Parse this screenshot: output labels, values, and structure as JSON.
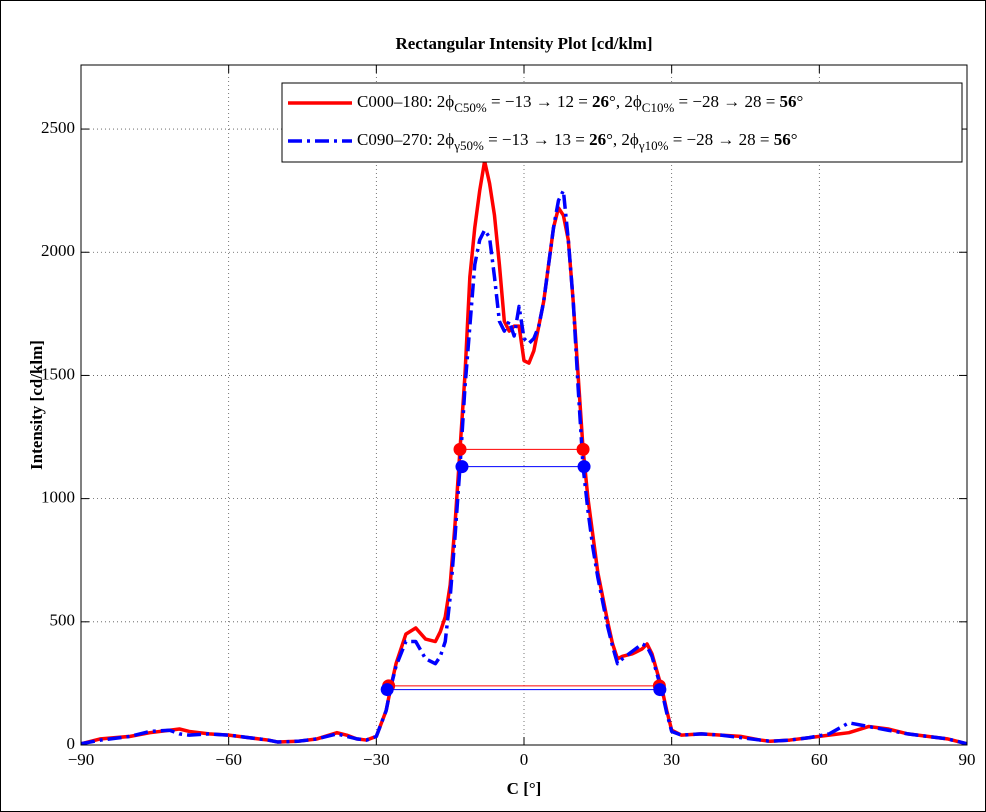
{
  "chart_data": {
    "type": "line",
    "title": "Rectangular Intensity Plot [cd/klm]",
    "xlabel": "C [°]",
    "ylabel": "Intensity [cd/klm]",
    "xlim": [
      -90,
      90
    ],
    "ylim": [
      0,
      2760
    ],
    "xticks": [
      {
        "value": -90,
        "label": "−90"
      },
      {
        "value": -60,
        "label": "−60"
      },
      {
        "value": -30,
        "label": "−30"
      },
      0,
      30,
      60,
      90
    ],
    "yticks": [
      0,
      500,
      1000,
      1500,
      2000,
      2500
    ],
    "grid": true,
    "legend": "upper-right",
    "x": [
      -90,
      -86,
      -80,
      -76,
      -72,
      -70,
      -68,
      -64,
      -60,
      -56,
      -52,
      -50,
      -46,
      -42,
      -38,
      -36,
      -34,
      -32,
      -30,
      -28,
      -27,
      -26,
      -24,
      -22,
      -20,
      -18,
      -17,
      -16,
      -15,
      -14,
      -13,
      -12,
      -11,
      -10,
      -9,
      -8,
      -7,
      -6,
      -5,
      -4,
      -3,
      -2,
      -1,
      0,
      1,
      2,
      3,
      4,
      5,
      6,
      7,
      8,
      9,
      10,
      11,
      12,
      13,
      14,
      15,
      16,
      17,
      18,
      19,
      20,
      22,
      24,
      25,
      26,
      27,
      28,
      29,
      30,
      32,
      36,
      40,
      44,
      48,
      50,
      54,
      58,
      62,
      66,
      70,
      74,
      78,
      82,
      86,
      90
    ],
    "series": [
      {
        "name": [
          {
            "text": "C000–180: 2ϕ",
            "style": "normal"
          },
          {
            "text": "C50%",
            "style": "sub"
          },
          {
            "text": " = −13 → 12 = ",
            "style": "normal"
          },
          {
            "text": "26",
            "style": "bold"
          },
          {
            "text": "°, 2ϕ",
            "style": "normal"
          },
          {
            "text": "C10%",
            "style": "sub"
          },
          {
            "text": " = −28 → 28 = ",
            "style": "normal"
          },
          {
            "text": "56",
            "style": "bold"
          },
          {
            "text": "°",
            "style": "normal"
          }
        ],
        "color": "#ff0000",
        "line_style": "solid",
        "values": [
          5,
          25,
          35,
          50,
          60,
          65,
          55,
          45,
          40,
          30,
          20,
          12,
          15,
          25,
          50,
          40,
          25,
          20,
          35,
          140,
          240,
          330,
          450,
          475,
          430,
          420,
          460,
          520,
          650,
          900,
          1200,
          1500,
          1900,
          2100,
          2250,
          2370,
          2280,
          2150,
          1950,
          1720,
          1680,
          1700,
          1700,
          1560,
          1550,
          1600,
          1700,
          1800,
          1950,
          2100,
          2180,
          2150,
          2050,
          1800,
          1500,
          1200,
          1000,
          850,
          700,
          600,
          500,
          410,
          350,
          360,
          370,
          390,
          410,
          370,
          300,
          230,
          140,
          60,
          40,
          45,
          40,
          35,
          20,
          15,
          20,
          30,
          40,
          50,
          75,
          65,
          45,
          35,
          25,
          5
        ],
        "markers": {
          "x": [
            -13,
            12,
            -27.5,
            27.5
          ],
          "y": [
            1200,
            1200,
            240,
            240
          ]
        }
      },
      {
        "name": [
          {
            "text": "C090–270: 2ϕ",
            "style": "normal"
          },
          {
            "text": "γ50%",
            "style": "sub"
          },
          {
            "text": " = −13 → 13 = ",
            "style": "normal"
          },
          {
            "text": "26",
            "style": "bold"
          },
          {
            "text": "°, 2ϕ",
            "style": "normal"
          },
          {
            "text": "γ10%",
            "style": "sub"
          },
          {
            "text": " = −28 → 28 = ",
            "style": "normal"
          },
          {
            "text": "56",
            "style": "bold"
          },
          {
            "text": "°",
            "style": "normal"
          }
        ],
        "color": "#0000ff",
        "line_style": "dashdot",
        "values": [
          5,
          20,
          35,
          55,
          60,
          45,
          40,
          45,
          40,
          30,
          20,
          12,
          15,
          25,
          45,
          35,
          25,
          20,
          35,
          140,
          240,
          320,
          420,
          420,
          350,
          330,
          360,
          420,
          600,
          850,
          1130,
          1450,
          1700,
          1950,
          2050,
          2090,
          2060,
          1900,
          1720,
          1680,
          1720,
          1660,
          1780,
          1650,
          1630,
          1650,
          1700,
          1800,
          1950,
          2100,
          2210,
          2250,
          2050,
          1800,
          1450,
          1130,
          950,
          800,
          680,
          580,
          480,
          400,
          330,
          350,
          380,
          410,
          400,
          360,
          290,
          220,
          130,
          55,
          40,
          45,
          40,
          30,
          20,
          15,
          20,
          30,
          45,
          90,
          75,
          60,
          45,
          35,
          25,
          5
        ],
        "markers": {
          "x": [
            -12.6,
            12.2,
            -27.8,
            27.6
          ],
          "y": [
            1130,
            1130,
            225,
            225
          ]
        }
      }
    ]
  }
}
